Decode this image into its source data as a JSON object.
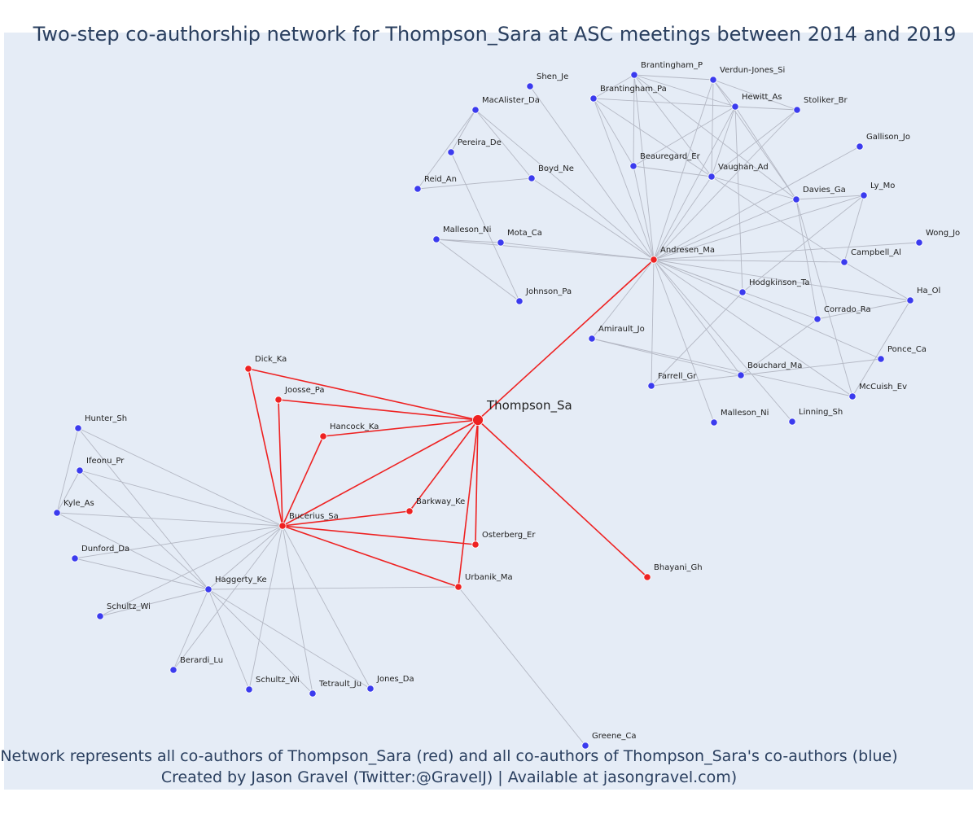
{
  "title": "Two-step co-authorship network for Thompson_Sara at ASC meetings between 2014 and 2019",
  "footer_line1": "Network represents all co-authors of Thompson_Sara (red) and all co-authors of Thompson_Sara's co-authors (blue)",
  "footer_line2": "Created by Jason Gravel (Twitter:@GravelJ) | Available at jasongravel.com)",
  "colors": {
    "red": "#ee2222",
    "blue": "#3b3bee",
    "edge": "#b4b8c4",
    "background": "#e5ecf6"
  },
  "nodes": [
    {
      "id": "Thompson_Sa",
      "group": "focal"
    },
    {
      "id": "Andresen_Ma",
      "group": "red"
    },
    {
      "id": "Dick_Ka",
      "group": "red"
    },
    {
      "id": "Joosse_Pa",
      "group": "red"
    },
    {
      "id": "Hancock_Ka",
      "group": "red"
    },
    {
      "id": "Bucerius_Sa",
      "group": "red"
    },
    {
      "id": "Barkway_Ke",
      "group": "red"
    },
    {
      "id": "Osterberg_Er",
      "group": "red"
    },
    {
      "id": "Urbanik_Ma",
      "group": "red"
    },
    {
      "id": "Bhayani_Gh",
      "group": "red"
    },
    {
      "id": "Shen_Je",
      "group": "blue"
    },
    {
      "id": "MacAlister_Da",
      "group": "blue"
    },
    {
      "id": "Pereira_De",
      "group": "blue"
    },
    {
      "id": "Boyd_Ne",
      "group": "blue"
    },
    {
      "id": "Reid_An",
      "group": "blue"
    },
    {
      "id": "Malleson_Ni",
      "group": "blue"
    },
    {
      "id": "Mota_Ca",
      "group": "blue"
    },
    {
      "id": "Johnson_Pa",
      "group": "blue"
    },
    {
      "id": "Brantingham_P",
      "group": "blue"
    },
    {
      "id": "Verdun-Jones_Si",
      "group": "blue"
    },
    {
      "id": "Brantingham_Pa",
      "group": "blue"
    },
    {
      "id": "Hewitt_As",
      "group": "blue"
    },
    {
      "id": "Stoliker_Br",
      "group": "blue"
    },
    {
      "id": "Gallison_Jo",
      "group": "blue"
    },
    {
      "id": "Beauregard_Er",
      "group": "blue"
    },
    {
      "id": "Vaughan_Ad",
      "group": "blue"
    },
    {
      "id": "Davies_Ga",
      "group": "blue"
    },
    {
      "id": "Ly_Mo",
      "group": "blue"
    },
    {
      "id": "Wong_Jo",
      "group": "blue"
    },
    {
      "id": "Campbell_Al",
      "group": "blue"
    },
    {
      "id": "Hodgkinson_Ta",
      "group": "blue"
    },
    {
      "id": "Ha_Ol",
      "group": "blue"
    },
    {
      "id": "Corrado_Ra",
      "group": "blue"
    },
    {
      "id": "Amirault_Jo",
      "group": "blue"
    },
    {
      "id": "Ponce_Ca",
      "group": "blue"
    },
    {
      "id": "Bouchard_Ma",
      "group": "blue"
    },
    {
      "id": "Farrell_Gr",
      "group": "blue"
    },
    {
      "id": "McCuish_Ev",
      "group": "blue"
    },
    {
      "id": "Malleson_Ni#2",
      "label": "Malleson_Ni",
      "group": "blue"
    },
    {
      "id": "Linning_Sh",
      "group": "blue"
    },
    {
      "id": "Hunter_Sh",
      "group": "blue"
    },
    {
      "id": "Ifeonu_Pr",
      "group": "blue"
    },
    {
      "id": "Kyle_As",
      "group": "blue"
    },
    {
      "id": "Dunford_Da",
      "group": "blue"
    },
    {
      "id": "Haggerty_Ke",
      "group": "blue"
    },
    {
      "id": "Schultz_Wi",
      "group": "blue"
    },
    {
      "id": "Berardi_Lu",
      "group": "blue"
    },
    {
      "id": "Schultz_Wi#2",
      "label": "Schultz_Wi",
      "group": "blue"
    },
    {
      "id": "Tetrault_Ju",
      "group": "blue"
    },
    {
      "id": "Jones_Da",
      "group": "blue"
    },
    {
      "id": "Greene_Ca",
      "group": "blue"
    }
  ],
  "edges": [
    [
      "Thompson_Sa",
      "Andresen_Ma"
    ],
    [
      "Thompson_Sa",
      "Dick_Ka"
    ],
    [
      "Thompson_Sa",
      "Joosse_Pa"
    ],
    [
      "Thompson_Sa",
      "Hancock_Ka"
    ],
    [
      "Thompson_Sa",
      "Bucerius_Sa"
    ],
    [
      "Thompson_Sa",
      "Barkway_Ke"
    ],
    [
      "Thompson_Sa",
      "Osterberg_Er"
    ],
    [
      "Thompson_Sa",
      "Urbanik_Ma"
    ],
    [
      "Thompson_Sa",
      "Bhayani_Gh"
    ],
    [
      "Bucerius_Sa",
      "Dick_Ka"
    ],
    [
      "Bucerius_Sa",
      "Joosse_Pa"
    ],
    [
      "Bucerius_Sa",
      "Hancock_Ka"
    ],
    [
      "Bucerius_Sa",
      "Barkway_Ke"
    ],
    [
      "Bucerius_Sa",
      "Osterberg_Er"
    ],
    [
      "Bucerius_Sa",
      "Urbanik_Ma"
    ],
    [
      "Andresen_Ma",
      "Shen_Je"
    ],
    [
      "Andresen_Ma",
      "MacAlister_Da"
    ],
    [
      "Andresen_Ma",
      "Boyd_Ne"
    ],
    [
      "Andresen_Ma",
      "Mota_Ca"
    ],
    [
      "Andresen_Ma",
      "Malleson_Ni"
    ],
    [
      "Andresen_Ma",
      "Brantingham_P"
    ],
    [
      "Andresen_Ma",
      "Verdun-Jones_Si"
    ],
    [
      "Andresen_Ma",
      "Brantingham_Pa"
    ],
    [
      "Andresen_Ma",
      "Hewitt_As"
    ],
    [
      "Andresen_Ma",
      "Stoliker_Br"
    ],
    [
      "Andresen_Ma",
      "Gallison_Jo"
    ],
    [
      "Andresen_Ma",
      "Beauregard_Er"
    ],
    [
      "Andresen_Ma",
      "Vaughan_Ad"
    ],
    [
      "Andresen_Ma",
      "Davies_Ga"
    ],
    [
      "Andresen_Ma",
      "Ly_Mo"
    ],
    [
      "Andresen_Ma",
      "Wong_Jo"
    ],
    [
      "Andresen_Ma",
      "Campbell_Al"
    ],
    [
      "Andresen_Ma",
      "Hodgkinson_Ta"
    ],
    [
      "Andresen_Ma",
      "Ha_Ol"
    ],
    [
      "Andresen_Ma",
      "Corrado_Ra"
    ],
    [
      "Andresen_Ma",
      "Amirault_Jo"
    ],
    [
      "Andresen_Ma",
      "Ponce_Ca"
    ],
    [
      "Andresen_Ma",
      "Bouchard_Ma"
    ],
    [
      "Andresen_Ma",
      "Farrell_Gr"
    ],
    [
      "Andresen_Ma",
      "McCuish_Ev"
    ],
    [
      "Andresen_Ma",
      "Malleson_Ni#2"
    ],
    [
      "Andresen_Ma",
      "Linning_Sh"
    ],
    [
      "MacAlister_Da",
      "Pereira_De"
    ],
    [
      "MacAlister_Da",
      "Boyd_Ne"
    ],
    [
      "Pereira_De",
      "Johnson_Pa"
    ],
    [
      "Reid_An",
      "Boyd_Ne"
    ],
    [
      "Reid_An",
      "MacAlister_Da"
    ],
    [
      "Malleson_Ni",
      "Johnson_Pa"
    ],
    [
      "Malleson_Ni",
      "Mota_Ca"
    ],
    [
      "Brantingham_P",
      "Brantingham_Pa"
    ],
    [
      "Brantingham_P",
      "Verdun-Jones_Si"
    ],
    [
      "Brantingham_P",
      "Hewitt_As"
    ],
    [
      "Brantingham_P",
      "Beauregard_Er"
    ],
    [
      "Brantingham_P",
      "Vaughan_Ad"
    ],
    [
      "Brantingham_P",
      "Davies_Ga"
    ],
    [
      "Brantingham_Pa",
      "Hewitt_As"
    ],
    [
      "Brantingham_Pa",
      "Beauregard_Er"
    ],
    [
      "Brantingham_Pa",
      "Vaughan_Ad"
    ],
    [
      "Verdun-Jones_Si",
      "Hewitt_As"
    ],
    [
      "Verdun-Jones_Si",
      "Stoliker_Br"
    ],
    [
      "Verdun-Jones_Si",
      "Vaughan_Ad"
    ],
    [
      "Verdun-Jones_Si",
      "Davies_Ga"
    ],
    [
      "Hewitt_As",
      "Stoliker_Br"
    ],
    [
      "Hewitt_As",
      "Vaughan_Ad"
    ],
    [
      "Hewitt_As",
      "Beauregard_Er"
    ],
    [
      "Hewitt_As",
      "Davies_Ga"
    ],
    [
      "Hewitt_As",
      "Hodgkinson_Ta"
    ],
    [
      "Stoliker_Br",
      "Vaughan_Ad"
    ],
    [
      "Vaughan_Ad",
      "Beauregard_Er"
    ],
    [
      "Vaughan_Ad",
      "Davies_Ga"
    ],
    [
      "Vaughan_Ad",
      "Campbell_Al"
    ],
    [
      "Davies_Ga",
      "Ly_Mo"
    ],
    [
      "Davies_Ga",
      "Corrado_Ra"
    ],
    [
      "Davies_Ga",
      "McCuish_Ev"
    ],
    [
      "Ly_Mo",
      "Campbell_Al"
    ],
    [
      "Ly_Mo",
      "Hodgkinson_Ta"
    ],
    [
      "Campbell_Al",
      "Ha_Ol"
    ],
    [
      "Ha_Ol",
      "Corrado_Ra"
    ],
    [
      "Ha_Ol",
      "McCuish_Ev"
    ],
    [
      "Corrado_Ra",
      "Bouchard_Ma"
    ],
    [
      "Hodgkinson_Ta",
      "Farrell_Gr"
    ],
    [
      "Amirault_Jo",
      "Bouchard_Ma"
    ],
    [
      "Amirault_Jo",
      "McCuish_Ev"
    ],
    [
      "Bouchard_Ma",
      "Farrell_Gr"
    ],
    [
      "Bouchard_Ma",
      "Ponce_Ca"
    ],
    [
      "Bucerius_Sa",
      "Hunter_Sh"
    ],
    [
      "Bucerius_Sa",
      "Ifeonu_Pr"
    ],
    [
      "Bucerius_Sa",
      "Kyle_As"
    ],
    [
      "Bucerius_Sa",
      "Dunford_Da"
    ],
    [
      "Bucerius_Sa",
      "Haggerty_Ke"
    ],
    [
      "Bucerius_Sa",
      "Schultz_Wi"
    ],
    [
      "Bucerius_Sa",
      "Berardi_Lu"
    ],
    [
      "Bucerius_Sa",
      "Schultz_Wi#2"
    ],
    [
      "Bucerius_Sa",
      "Tetrault_Ju"
    ],
    [
      "Bucerius_Sa",
      "Jones_Da"
    ],
    [
      "Haggerty_Ke",
      "Hunter_Sh"
    ],
    [
      "Haggerty_Ke",
      "Ifeonu_Pr"
    ],
    [
      "Haggerty_Ke",
      "Kyle_As"
    ],
    [
      "Haggerty_Ke",
      "Dunford_Da"
    ],
    [
      "Haggerty_Ke",
      "Schultz_Wi"
    ],
    [
      "Haggerty_Ke",
      "Berardi_Lu"
    ],
    [
      "Haggerty_Ke",
      "Schultz_Wi#2"
    ],
    [
      "Haggerty_Ke",
      "Tetrault_Ju"
    ],
    [
      "Haggerty_Ke",
      "Jones_Da"
    ],
    [
      "Haggerty_Ke",
      "Urbanik_Ma"
    ],
    [
      "Hunter_Sh",
      "Kyle_As"
    ],
    [
      "Ifeonu_Pr",
      "Kyle_As"
    ],
    [
      "Urbanik_Ma",
      "Greene_Ca"
    ]
  ]
}
